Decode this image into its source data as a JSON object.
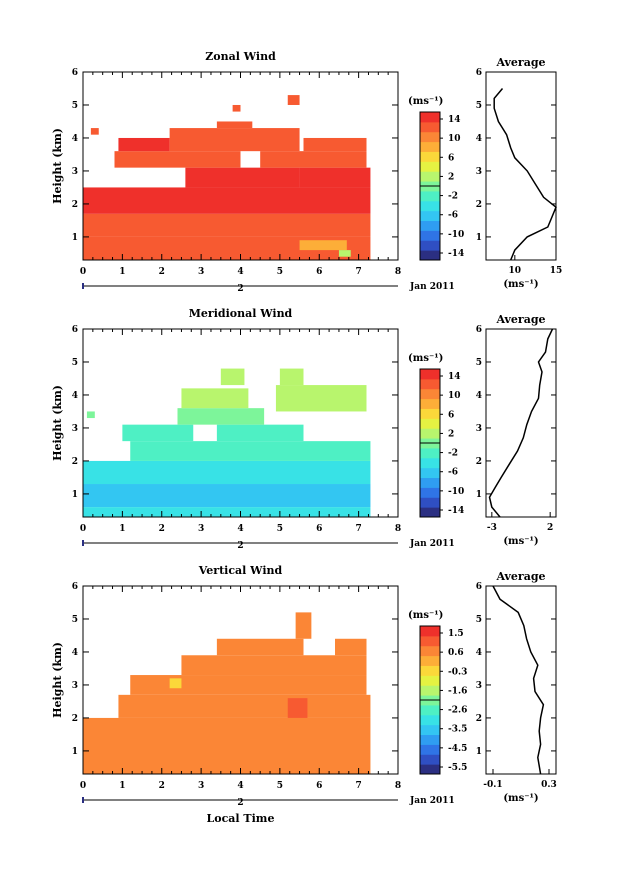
{
  "figure": {
    "bottom_xlabel": "Local Time",
    "date_label": "Jan 2011",
    "sub_axis_label": "2"
  },
  "palette": [
    "#2b2f82",
    "#2f4fc3",
    "#2f74e6",
    "#2f9df1",
    "#33c6f2",
    "#38e2e6",
    "#4ef0c4",
    "#7df59a",
    "#b8f56d",
    "#e5f242",
    "#fbd83a",
    "#fdae38",
    "#fb8636",
    "#f75a31",
    "#ef302b"
  ],
  "chart_data": [
    {
      "type": "heatmap",
      "title": "Zonal Wind",
      "ylabel": "Height (km)",
      "x_ticks": [
        "0",
        "1",
        "2",
        "3",
        "4",
        "5",
        "6",
        "7",
        "8"
      ],
      "y_ticks": [
        "1",
        "2",
        "3",
        "4",
        "5",
        "6"
      ],
      "xlim": [
        0,
        8
      ],
      "ylim": [
        0.3,
        6
      ],
      "colorbar": {
        "unit": "(ms⁻¹)",
        "ticks": [
          "14",
          "10",
          "6",
          "2",
          "-2",
          "-6",
          "-10",
          "-14"
        ],
        "range": [
          -16,
          16
        ]
      },
      "regions": [
        {
          "x0": 0.0,
          "x1": 7.3,
          "y0": 0.3,
          "y1": 1.0,
          "v": 12
        },
        {
          "x0": 0.0,
          "x1": 7.3,
          "y0": 1.0,
          "y1": 1.7,
          "v": 13
        },
        {
          "x0": 0.0,
          "x1": 7.3,
          "y0": 1.7,
          "y1": 2.5,
          "v": 15
        },
        {
          "x0": 5.5,
          "x1": 7.3,
          "y0": 2.5,
          "y1": 3.1,
          "v": 15
        },
        {
          "x0": 2.6,
          "x1": 5.5,
          "y0": 2.5,
          "y1": 3.1,
          "v": 14
        },
        {
          "x0": 0.8,
          "x1": 4.0,
          "y0": 3.1,
          "y1": 3.6,
          "v": 13
        },
        {
          "x0": 4.5,
          "x1": 7.2,
          "y0": 3.1,
          "y1": 3.6,
          "v": 13
        },
        {
          "x0": 0.9,
          "x1": 2.2,
          "y0": 3.6,
          "y1": 4.0,
          "v": 14
        },
        {
          "x0": 2.2,
          "x1": 5.5,
          "y0": 3.6,
          "y1": 4.3,
          "v": 12
        },
        {
          "x0": 5.6,
          "x1": 7.2,
          "y0": 3.6,
          "y1": 4.0,
          "v": 12
        },
        {
          "x0": 3.4,
          "x1": 4.3,
          "y0": 4.3,
          "y1": 4.5,
          "v": 12
        },
        {
          "x0": 0.2,
          "x1": 0.4,
          "y0": 4.1,
          "y1": 4.3,
          "v": 12
        },
        {
          "x0": 3.8,
          "x1": 4.0,
          "y0": 4.8,
          "y1": 5.0,
          "v": 12
        },
        {
          "x0": 5.2,
          "x1": 5.5,
          "y0": 5.0,
          "y1": 5.3,
          "v": 12
        },
        {
          "x0": 5.5,
          "x1": 6.7,
          "y0": 0.6,
          "y1": 0.9,
          "v": 8
        },
        {
          "x0": 6.5,
          "x1": 6.8,
          "y0": 0.4,
          "y1": 0.6,
          "v": 2
        }
      ],
      "average": {
        "xlim": [
          6.5,
          15
        ],
        "x_ticks": [
          "10",
          "15"
        ],
        "title": "Average",
        "unit": "(ms⁻¹)",
        "profile": [
          [
            0.3,
            9.5
          ],
          [
            0.6,
            10
          ],
          [
            1.0,
            11.5
          ],
          [
            1.3,
            14
          ],
          [
            1.6,
            14.5
          ],
          [
            1.9,
            15
          ],
          [
            2.2,
            13.5
          ],
          [
            2.6,
            12.5
          ],
          [
            3.0,
            11.5
          ],
          [
            3.4,
            10
          ],
          [
            3.7,
            9.5
          ],
          [
            4.1,
            9
          ],
          [
            4.5,
            8
          ],
          [
            4.9,
            7.5
          ],
          [
            5.2,
            7.5
          ],
          [
            5.5,
            8.5
          ]
        ]
      }
    },
    {
      "type": "heatmap",
      "title": "Meridional Wind",
      "ylabel": "Height (km)",
      "x_ticks": [
        "0",
        "1",
        "2",
        "3",
        "4",
        "5",
        "6",
        "7",
        "8"
      ],
      "y_ticks": [
        "1",
        "2",
        "3",
        "4",
        "5",
        "6"
      ],
      "xlim": [
        0,
        8
      ],
      "ylim": [
        0.3,
        6
      ],
      "colorbar": {
        "unit": "(ms⁻¹)",
        "ticks": [
          "14",
          "10",
          "6",
          "2",
          "-2",
          "-6",
          "-10",
          "-14"
        ],
        "range": [
          -16,
          16
        ]
      },
      "regions": [
        {
          "x0": 0.0,
          "x1": 7.3,
          "y0": 0.3,
          "y1": 0.6,
          "v": -4
        },
        {
          "x0": 0.0,
          "x1": 7.3,
          "y0": 0.6,
          "y1": 1.3,
          "v": -6
        },
        {
          "x0": 0.0,
          "x1": 7.3,
          "y0": 1.3,
          "y1": 2.0,
          "v": -5
        },
        {
          "x0": 1.2,
          "x1": 7.3,
          "y0": 2.0,
          "y1": 2.6,
          "v": -3
        },
        {
          "x0": 1.0,
          "x1": 2.8,
          "y0": 2.6,
          "y1": 3.1,
          "v": -2
        },
        {
          "x0": 3.4,
          "x1": 5.6,
          "y0": 2.6,
          "y1": 3.1,
          "v": -2
        },
        {
          "x0": 2.4,
          "x1": 4.6,
          "y0": 3.1,
          "y1": 3.6,
          "v": -1
        },
        {
          "x0": 2.5,
          "x1": 4.2,
          "y0": 3.6,
          "y1": 4.2,
          "v": 3
        },
        {
          "x0": 4.9,
          "x1": 7.2,
          "y0": 3.5,
          "y1": 4.3,
          "v": 3
        },
        {
          "x0": 3.5,
          "x1": 4.1,
          "y0": 4.3,
          "y1": 4.8,
          "v": 3
        },
        {
          "x0": 5.0,
          "x1": 5.6,
          "y0": 4.3,
          "y1": 4.8,
          "v": 3
        },
        {
          "x0": 0.1,
          "x1": 0.3,
          "y0": 3.3,
          "y1": 3.5,
          "v": -1
        }
      ],
      "average": {
        "xlim": [
          -3.5,
          2.5
        ],
        "x_ticks": [
          "-3",
          "2"
        ],
        "title": "Average",
        "unit": "(ms⁻¹)",
        "profile": [
          [
            0.3,
            -2.3
          ],
          [
            0.6,
            -3
          ],
          [
            0.9,
            -3.2
          ],
          [
            1.2,
            -2.7
          ],
          [
            1.5,
            -2.2
          ],
          [
            1.9,
            -1.5
          ],
          [
            2.3,
            -0.8
          ],
          [
            2.7,
            -0.3
          ],
          [
            3.1,
            0
          ],
          [
            3.5,
            0.4
          ],
          [
            3.9,
            1.0
          ],
          [
            4.3,
            1.1
          ],
          [
            4.7,
            1.3
          ],
          [
            5.0,
            1.0
          ],
          [
            5.3,
            1.6
          ],
          [
            5.7,
            1.8
          ],
          [
            6.0,
            2.2
          ]
        ]
      }
    },
    {
      "type": "heatmap",
      "title": "Vertical Wind",
      "ylabel": "Height (km)",
      "x_ticks": [
        "0",
        "1",
        "2",
        "3",
        "4",
        "5",
        "6",
        "7",
        "8"
      ],
      "y_ticks": [
        "1",
        "2",
        "3",
        "4",
        "5",
        "6"
      ],
      "xlim": [
        0,
        8
      ],
      "ylim": [
        0.3,
        6
      ],
      "colorbar": {
        "unit": "(ms⁻¹)",
        "ticks": [
          "1.5",
          "0.6",
          "-0.3",
          "-1.6",
          "-2.6",
          "-3.5",
          "-4.5",
          "-5.5"
        ],
        "range": [
          -6,
          2
        ]
      },
      "regions": [
        {
          "x0": 0.0,
          "x1": 7.3,
          "y0": 0.3,
          "y1": 2.0,
          "v": 0.5
        },
        {
          "x0": 0.9,
          "x1": 7.3,
          "y0": 2.0,
          "y1": 2.7,
          "v": 0.5
        },
        {
          "x0": 1.2,
          "x1": 7.2,
          "y0": 2.7,
          "y1": 3.3,
          "v": 0.5
        },
        {
          "x0": 2.5,
          "x1": 7.2,
          "y0": 3.3,
          "y1": 3.9,
          "v": 0.5
        },
        {
          "x0": 3.4,
          "x1": 5.6,
          "y0": 3.9,
          "y1": 4.4,
          "v": 0.5
        },
        {
          "x0": 5.4,
          "x1": 5.8,
          "y0": 4.4,
          "y1": 5.2,
          "v": 0.5
        },
        {
          "x0": 6.4,
          "x1": 7.2,
          "y0": 3.9,
          "y1": 4.4,
          "v": 0.5
        },
        {
          "x0": 5.2,
          "x1": 5.7,
          "y0": 2.0,
          "y1": 2.6,
          "v": 1.1
        },
        {
          "x0": 2.2,
          "x1": 2.5,
          "y0": 2.9,
          "y1": 3.2,
          "v": -0.3
        }
      ],
      "average": {
        "xlim": [
          -0.15,
          0.35
        ],
        "x_ticks": [
          "-0.1",
          "0.3"
        ],
        "title": "Average",
        "unit": "(ms⁻¹)",
        "profile": [
          [
            0.3,
            0.24
          ],
          [
            0.8,
            0.22
          ],
          [
            1.2,
            0.24
          ],
          [
            1.6,
            0.23
          ],
          [
            2.0,
            0.24
          ],
          [
            2.4,
            0.26
          ],
          [
            2.8,
            0.2
          ],
          [
            3.2,
            0.19
          ],
          [
            3.6,
            0.22
          ],
          [
            4.0,
            0.17
          ],
          [
            4.4,
            0.14
          ],
          [
            4.8,
            0.12
          ],
          [
            5.2,
            0.08
          ],
          [
            5.6,
            -0.05
          ],
          [
            6.0,
            -0.1
          ]
        ]
      }
    }
  ]
}
